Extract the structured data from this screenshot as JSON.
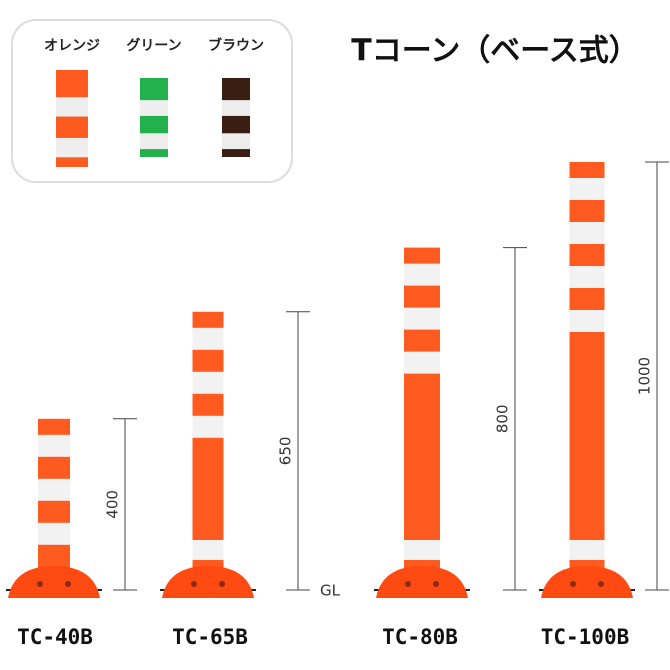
{
  "title": "Tコーン（ベース式）",
  "colors": [
    {
      "label": "オレンジ",
      "color": "#ff5a1f"
    },
    {
      "label": "グリーン",
      "color": "#22b14c"
    },
    {
      "label": "ブラウン",
      "color": "#3a1e14"
    }
  ],
  "ground_label": "GL",
  "products": [
    {
      "name": "TC-40B",
      "height": 400
    },
    {
      "name": "TC-65B",
      "height": 650
    },
    {
      "name": "TC-80B",
      "height": 800
    },
    {
      "name": "TC-100B",
      "height": 1000
    }
  ]
}
